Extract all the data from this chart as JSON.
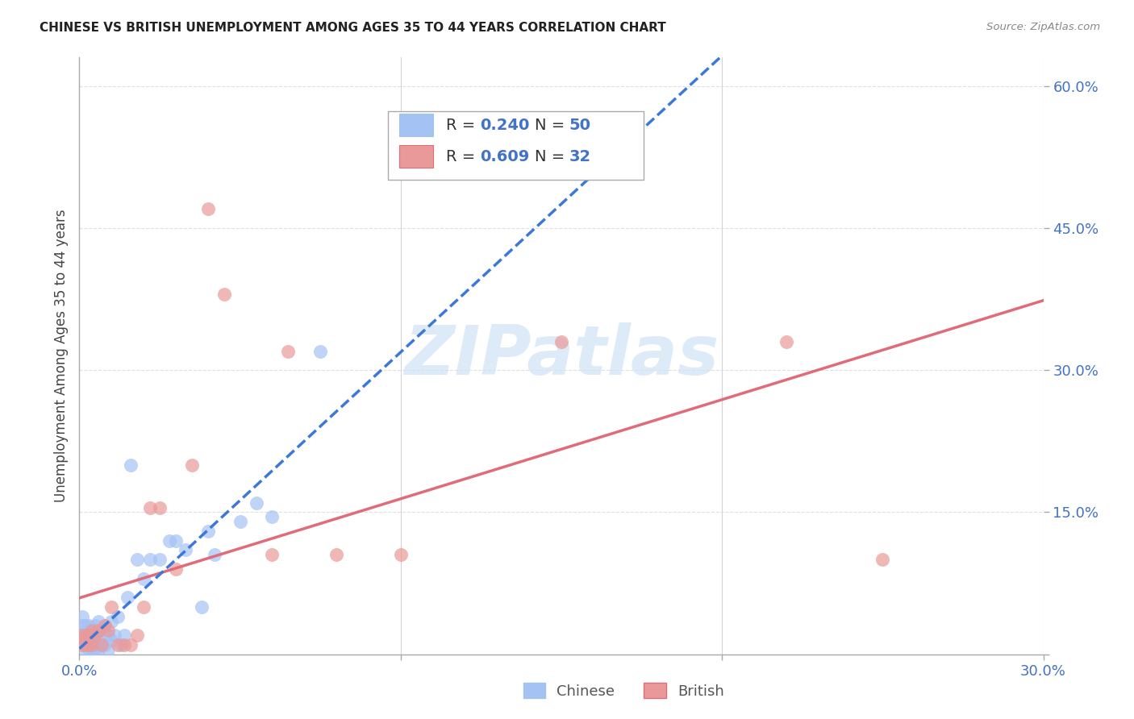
{
  "title": "CHINESE VS BRITISH UNEMPLOYMENT AMONG AGES 35 TO 44 YEARS CORRELATION CHART",
  "source": "Source: ZipAtlas.com",
  "ylabel": "Unemployment Among Ages 35 to 44 years",
  "xlim": [
    0.0,
    0.3
  ],
  "ylim": [
    0.0,
    0.63
  ],
  "chinese_color": "#a4c2f4",
  "british_color": "#ea9999",
  "trend_chinese_color": "#3c78d8",
  "trend_british_color": "#e06c7a",
  "axis_label_color": "#4472c4",
  "title_color": "#222222",
  "source_color": "#888888",
  "grid_color": "#dddddd",
  "legend_r_chinese": "R = 0.240",
  "legend_n_chinese": "N = 50",
  "legend_r_british": "R = 0.609",
  "legend_n_british": "N = 32",
  "chinese_x": [
    0.001,
    0.001,
    0.001,
    0.002,
    0.002,
    0.002,
    0.002,
    0.003,
    0.003,
    0.003,
    0.003,
    0.004,
    0.004,
    0.004,
    0.005,
    0.005,
    0.005,
    0.005,
    0.006,
    0.006,
    0.006,
    0.006,
    0.007,
    0.007,
    0.008,
    0.008,
    0.009,
    0.009,
    0.01,
    0.01,
    0.011,
    0.012,
    0.013,
    0.014,
    0.015,
    0.016,
    0.018,
    0.02,
    0.022,
    0.025,
    0.028,
    0.03,
    0.033,
    0.038,
    0.04,
    0.042,
    0.05,
    0.055,
    0.06,
    0.075
  ],
  "chinese_y": [
    0.02,
    0.03,
    0.04,
    0.005,
    0.01,
    0.02,
    0.03,
    0.005,
    0.01,
    0.02,
    0.03,
    0.005,
    0.015,
    0.025,
    0.005,
    0.01,
    0.02,
    0.03,
    0.005,
    0.015,
    0.025,
    0.035,
    0.01,
    0.025,
    0.01,
    0.03,
    0.005,
    0.02,
    0.015,
    0.035,
    0.02,
    0.04,
    0.01,
    0.02,
    0.06,
    0.2,
    0.1,
    0.08,
    0.1,
    0.1,
    0.12,
    0.12,
    0.11,
    0.05,
    0.13,
    0.105,
    0.14,
    0.16,
    0.145,
    0.32
  ],
  "british_x": [
    0.001,
    0.001,
    0.002,
    0.002,
    0.003,
    0.003,
    0.004,
    0.004,
    0.005,
    0.006,
    0.007,
    0.008,
    0.009,
    0.01,
    0.012,
    0.014,
    0.016,
    0.018,
    0.02,
    0.022,
    0.025,
    0.03,
    0.035,
    0.04,
    0.045,
    0.06,
    0.065,
    0.08,
    0.1,
    0.15,
    0.22,
    0.25
  ],
  "british_y": [
    0.01,
    0.02,
    0.01,
    0.02,
    0.01,
    0.02,
    0.01,
    0.025,
    0.02,
    0.025,
    0.01,
    0.03,
    0.025,
    0.05,
    0.01,
    0.01,
    0.01,
    0.02,
    0.05,
    0.155,
    0.155,
    0.09,
    0.2,
    0.47,
    0.38,
    0.105,
    0.32,
    0.105,
    0.105,
    0.33,
    0.33,
    0.1
  ]
}
